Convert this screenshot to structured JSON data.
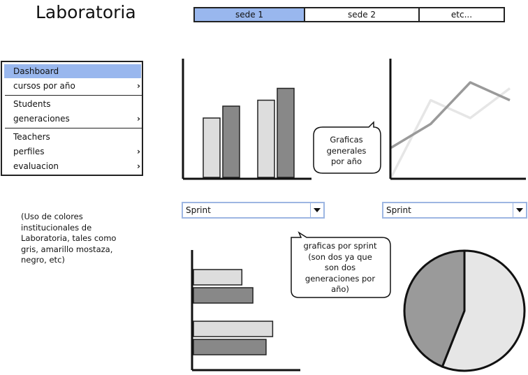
{
  "header": {
    "title": "Laboratoria"
  },
  "tabs": [
    {
      "label": "sede 1",
      "active": true
    },
    {
      "label": "sede 2",
      "active": false
    },
    {
      "label": "etc...",
      "active": false
    }
  ],
  "sidebar": {
    "items": [
      {
        "label": "Dashboard",
        "active": true,
        "has_submenu": false
      },
      {
        "label": "cursos por año",
        "active": false,
        "has_submenu": true
      },
      {
        "label": "Students",
        "active": false,
        "has_submenu": false
      },
      {
        "label": "generaciones",
        "active": false,
        "has_submenu": true
      },
      {
        "label": "Teachers",
        "active": false,
        "has_submenu": false
      },
      {
        "label": "perfiles",
        "active": false,
        "has_submenu": true
      },
      {
        "label": "evaluacion",
        "active": false,
        "has_submenu": true
      }
    ],
    "submenu_icon": "chevron-right-icon"
  },
  "note": {
    "text": "(Uso de colores institucionales de Laboratoria, tales como gris, amarillo mostaza, negro, etc)"
  },
  "callouts": {
    "general": {
      "lines": [
        "Graficas",
        "generales",
        "por año"
      ]
    },
    "sprint": {
      "lines": [
        "graficas por sprint",
        "(son dos ya que",
        "son dos",
        "generaciones por",
        "año)"
      ]
    }
  },
  "dropdowns": {
    "left": {
      "selected": "Sprint"
    },
    "right": {
      "selected": "Sprint"
    }
  },
  "colors": {
    "accent": "#99b7ee",
    "dropdown_border": "#9db6e2",
    "light_gray": "#dddddd",
    "mid_gray": "#9a9a9a",
    "dark_gray": "#888888",
    "stroke": "#222222"
  },
  "chart_data": [
    {
      "type": "bar",
      "categories": [
        "",
        ""
      ],
      "series": [
        {
          "values": [
            5,
            6.5
          ],
          "color": "#dddddd"
        },
        {
          "values": [
            6,
            7.5
          ],
          "color": "#888888"
        }
      ],
      "ylim": [
        0,
        10
      ],
      "legend": "none",
      "grid": false
    },
    {
      "type": "line",
      "x": [
        0,
        1,
        2,
        3
      ],
      "series": [
        {
          "values": [
            2.5,
            4.5,
            8,
            6.5
          ],
          "color": "#9a9a9a"
        },
        {
          "values": [
            0,
            6.5,
            5,
            7.5
          ],
          "color": "#e6e6e6"
        }
      ],
      "ylim": [
        0,
        10
      ],
      "legend": "none",
      "grid": false
    },
    {
      "type": "bar",
      "orientation": "horizontal",
      "categories": [
        "",
        ""
      ],
      "series": [
        {
          "values": [
            5.5,
            9
          ],
          "color": "#dddddd"
        },
        {
          "values": [
            6.75,
            8.25
          ],
          "color": "#888888"
        }
      ],
      "xlim": [
        0,
        10
      ],
      "legend": "none",
      "grid": false
    },
    {
      "type": "pie",
      "slices": [
        {
          "value": 56,
          "color": "#e6e6e6"
        },
        {
          "value": 44,
          "color": "#9a9a9a"
        }
      ],
      "legend": "none"
    }
  ]
}
